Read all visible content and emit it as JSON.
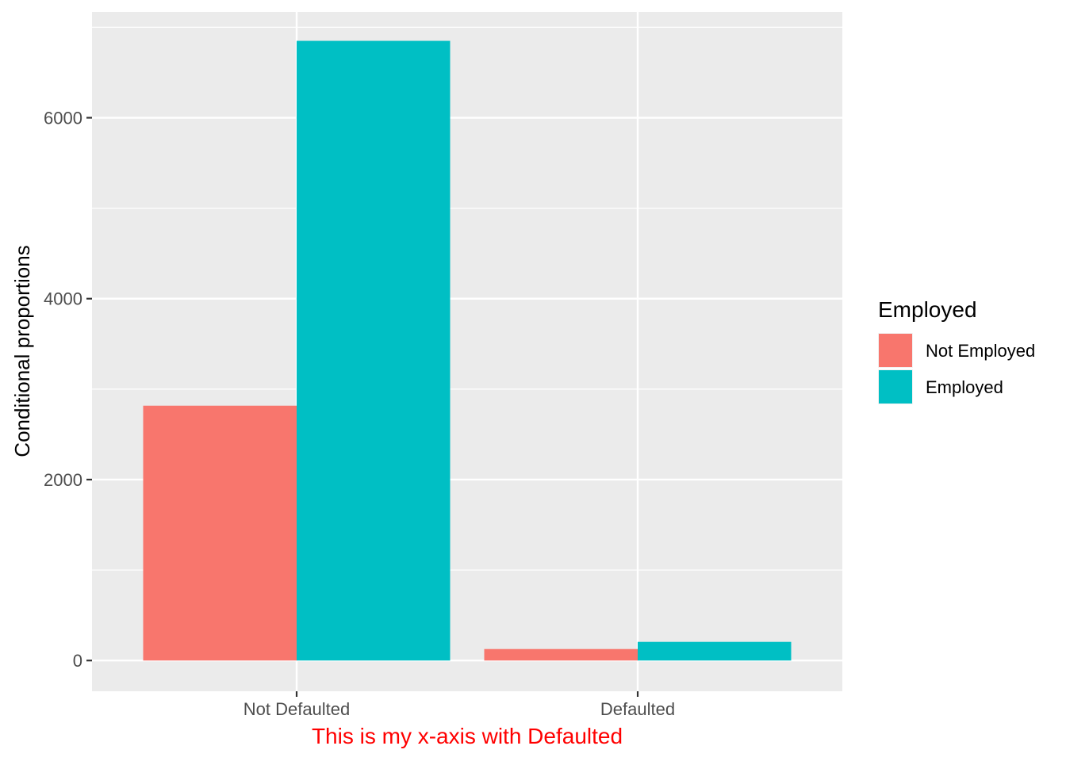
{
  "chart_data": {
    "type": "bar",
    "title": "",
    "xlabel": "This is my x-axis with Defaulted",
    "ylabel": "Conditional proportions",
    "categories": [
      "Not Defaulted",
      "Defaulted"
    ],
    "series": [
      {
        "name": "Not Employed",
        "values": [
          2817,
          127
        ],
        "color": "#F8766D"
      },
      {
        "name": "Employed",
        "values": [
          6850,
          206
        ],
        "color": "#00BFC4"
      }
    ],
    "ylim": [
      -340,
      7170
    ],
    "yticks": [
      0,
      2000,
      4000,
      6000
    ],
    "ytick_labels": [
      "0",
      "2000",
      "4000",
      "6000"
    ],
    "legend": {
      "title": "Employed",
      "position": "right"
    },
    "grid": true,
    "panel_background": "#EBEBEB",
    "xlabel_color": "#FF0000"
  }
}
